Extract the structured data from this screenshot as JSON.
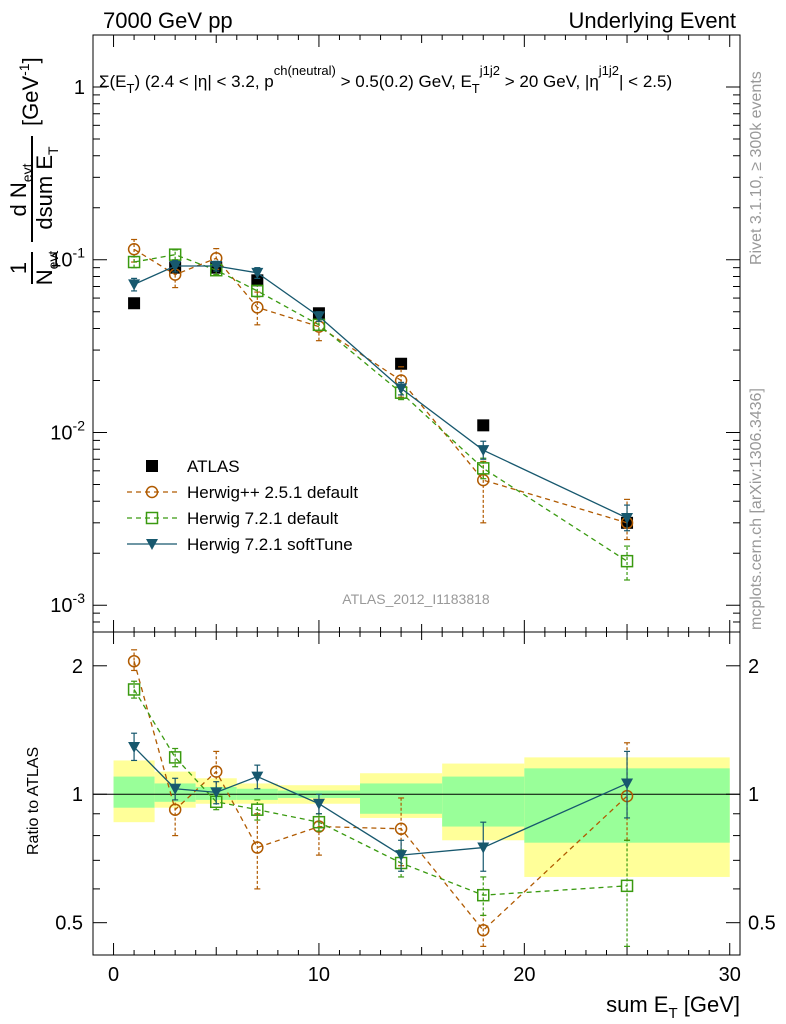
{
  "header": {
    "left": "7000 GeV pp",
    "right": "Underlying Event"
  },
  "side_labels": {
    "rivet": "Rivet 3.1.10, ≥ 300k events",
    "mcplots": "mcplots.cern.ch [arXiv:1306.3436]"
  },
  "colors": {
    "atlas": "#000000",
    "herwigpp": "#b05a00",
    "herwig721": "#3a9a10",
    "softtune": "#17586e",
    "band_yellow": "#ffff99",
    "band_green": "#99ff99"
  },
  "chart_data": [
    {
      "type": "scatter",
      "title": "Σ(E_T) (2.4 < |η| < 3.2, p^ch(neutral) > 0.5(0.2) GeV, E_T^j1j2 > 20 GeV, |η^j1j2| < 2.5)",
      "title_parts": {
        "sigma": "Σ(E",
        "sigma_sub": "T",
        "range": ") (2.4 < |η| < 3.2, p",
        "p_sup": "ch(neutral)",
        "cut": " > 0.5(0.2) GeV, E",
        "e_sub": "T",
        "e_sup": "j1j2",
        "ecut": " > 20 GeV, |η",
        "eta_sup": "j1j2",
        "etacut": "| < 2.5)"
      },
      "analysis_label": "ATLAS_2012_I1183818",
      "ylabel": "1/N_evt dN_evt/dsum E_T [GeV^-1]",
      "ylabel_parts": {
        "one": "1",
        "n": "N",
        "n_sub": "evt",
        "d": "d N",
        "d_sub": "evt",
        "dsum": "dsum E",
        "dsum_sub": "T",
        "unit": "[GeV",
        "unit_sup": "-1",
        "unit_close": "]"
      },
      "yscale": "log",
      "ylim": [
        0.0007,
        2
      ],
      "xlim": [
        -1,
        30.5
      ],
      "ytick_labels": [
        {
          "base": "10",
          "exp": "-3"
        },
        {
          "base": "10",
          "exp": "-2"
        },
        {
          "base": "10",
          "exp": "-1"
        },
        {
          "base": "1",
          "exp": ""
        }
      ],
      "ytick_values": [
        0.001,
        0.01,
        0.1,
        1
      ],
      "legend": [
        {
          "label": "ATLAS",
          "marker": "filled-square"
        },
        {
          "label": "Herwig++ 2.5.1 default",
          "marker": "open-circle",
          "line": "dashed"
        },
        {
          "label": "Herwig 7.2.1 default",
          "marker": "open-square",
          "line": "dashed"
        },
        {
          "label": "Herwig 7.2.1 softTune",
          "marker": "filled-triangle-down",
          "line": "solid"
        }
      ],
      "legend_position": "bottom-left",
      "series": [
        {
          "name": "ATLAS",
          "x": [
            1,
            3,
            5,
            7,
            10,
            14,
            18,
            25
          ],
          "y": [
            0.056,
            0.09,
            0.09,
            0.076,
            0.049,
            0.025,
            0.011,
            0.003
          ]
        },
        {
          "name": "Herwig++ 2.5.1 default",
          "x": [
            1,
            3,
            5,
            7,
            10,
            14,
            18,
            25
          ],
          "y": [
            0.115,
            0.082,
            0.102,
            0.053,
            0.041,
            0.02,
            0.0053,
            0.003
          ],
          "err_lo": [
            0.097,
            0.069,
            0.088,
            0.042,
            0.034,
            0.016,
            0.003,
            0.0024
          ],
          "err_hi": [
            0.131,
            0.095,
            0.116,
            0.065,
            0.048,
            0.024,
            0.0068,
            0.0041
          ]
        },
        {
          "name": "Herwig 7.2.1 default",
          "x": [
            1,
            3,
            5,
            7,
            10,
            14,
            18,
            25
          ],
          "y": [
            0.097,
            0.107,
            0.087,
            0.066,
            0.042,
            0.017,
            0.0062,
            0.0018
          ],
          "err_lo": [
            0.09,
            0.1,
            0.082,
            0.061,
            0.039,
            0.0155,
            0.0054,
            0.0014
          ],
          "err_hi": [
            0.104,
            0.114,
            0.092,
            0.071,
            0.045,
            0.0185,
            0.0071,
            0.0022
          ]
        },
        {
          "name": "Herwig 7.2.1 softTune",
          "x": [
            1,
            3,
            5,
            7,
            10,
            14,
            18,
            25
          ],
          "y": [
            0.072,
            0.092,
            0.092,
            0.084,
            0.047,
            0.018,
            0.0079,
            0.0032
          ],
          "err_lo": [
            0.066,
            0.085,
            0.086,
            0.078,
            0.044,
            0.0165,
            0.007,
            0.0027
          ],
          "err_hi": [
            0.078,
            0.099,
            0.098,
            0.09,
            0.05,
            0.0195,
            0.0089,
            0.0038
          ]
        }
      ]
    },
    {
      "type": "scatter",
      "title": "",
      "xlabel": "sum E_T [GeV]",
      "xlabel_parts": {
        "main": "sum E",
        "sub": "T",
        "unit": " [GeV]"
      },
      "ylabel": "Ratio to ATLAS",
      "yscale": "log",
      "ylim": [
        0.42,
        2.4
      ],
      "xlim": [
        -1,
        30.5
      ],
      "ytick_values": [
        0.5,
        1,
        2
      ],
      "ytick_labels": [
        "0.5",
        "1",
        "2"
      ],
      "xtick_values": [
        0,
        10,
        20,
        30
      ],
      "xtick_labels": [
        "0",
        "10",
        "20",
        "30"
      ],
      "bands": {
        "edges": [
          0,
          2,
          4,
          6,
          8,
          12,
          16,
          20,
          30
        ],
        "yellow_lo": [
          0.86,
          0.93,
          0.95,
          0.95,
          0.95,
          0.88,
          0.78,
          0.64,
          0.43
        ],
        "yellow_hi": [
          1.2,
          1.13,
          1.09,
          1.06,
          1.05,
          1.12,
          1.18,
          1.22,
          1.28
        ],
        "green_lo": [
          0.93,
          0.96,
          0.97,
          0.97,
          0.98,
          0.9,
          0.84,
          0.77,
          0.77
        ],
        "green_hi": [
          1.1,
          1.06,
          1.04,
          1.03,
          1.02,
          1.06,
          1.1,
          1.15,
          1.15
        ]
      },
      "series": [
        {
          "name": "Herwig++ 2.5.1 default",
          "x": [
            1,
            3,
            5,
            7,
            10,
            14,
            18,
            25
          ],
          "y": [
            2.05,
            0.92,
            1.13,
            0.75,
            0.84,
            0.83,
            0.48,
            0.99
          ],
          "err_lo": [
            1.95,
            0.8,
            1.0,
            0.6,
            0.72,
            0.68,
            0.44,
            0.78
          ],
          "err_hi": [
            2.18,
            1.04,
            1.26,
            0.9,
            0.96,
            0.98,
            0.52,
            1.32
          ]
        },
        {
          "name": "Herwig 7.2.1 default",
          "x": [
            1,
            3,
            5,
            7,
            10,
            14,
            18,
            25
          ],
          "y": [
            1.76,
            1.22,
            0.96,
            0.92,
            0.86,
            0.69,
            0.58,
            0.61
          ],
          "err_lo": [
            1.68,
            1.16,
            0.92,
            0.87,
            0.82,
            0.64,
            0.52,
            0.44
          ],
          "err_hi": [
            1.84,
            1.28,
            1.0,
            0.97,
            0.9,
            0.74,
            0.64,
            0.78
          ]
        },
        {
          "name": "Herwig 7.2.1 softTune",
          "x": [
            1,
            3,
            5,
            7,
            10,
            14,
            18,
            25
          ],
          "y": [
            1.29,
            1.03,
            1.01,
            1.1,
            0.95,
            0.72,
            0.75,
            1.06
          ],
          "err_lo": [
            1.2,
            0.97,
            0.95,
            1.03,
            0.9,
            0.66,
            0.66,
            0.88
          ],
          "err_hi": [
            1.39,
            1.09,
            1.07,
            1.17,
            1.0,
            0.78,
            0.86,
            1.26
          ]
        }
      ]
    }
  ]
}
